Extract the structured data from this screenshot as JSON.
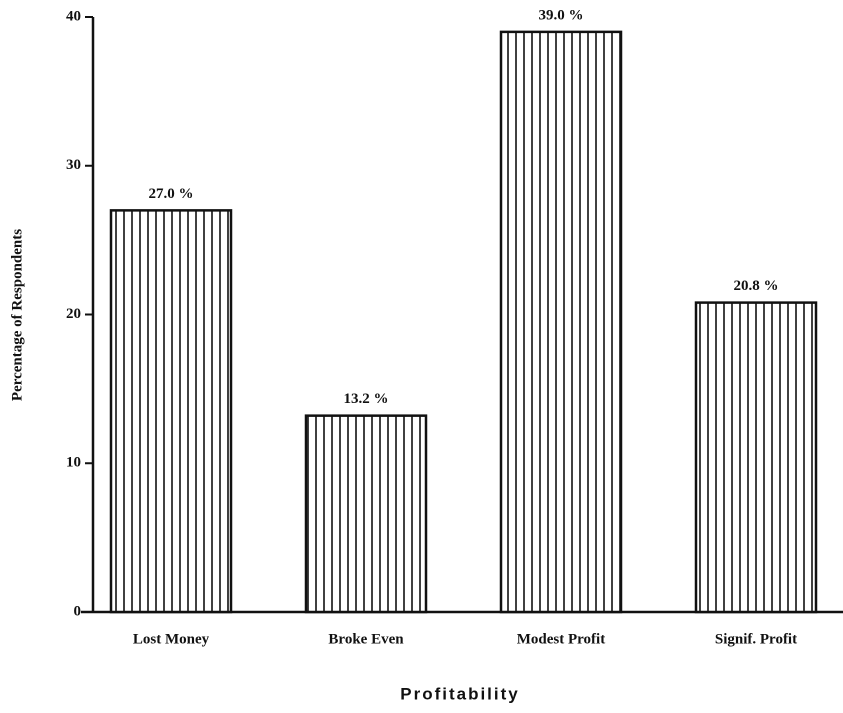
{
  "chart_data": {
    "type": "bar",
    "categories": [
      "Lost Money",
      "Broke Even",
      "Modest Profit",
      "Signif. Profit"
    ],
    "values": [
      27.0,
      13.2,
      39.0,
      20.8
    ],
    "value_labels": [
      "27.0 %",
      "13.2 %",
      "39.0 %",
      "20.8 %"
    ],
    "x_label": "Profitability",
    "y_label": "Percentage of Respondents",
    "ylim": [
      0,
      40
    ],
    "yticks": [
      0,
      10,
      20,
      30,
      40
    ],
    "color": "#111111",
    "hatch": "vertical"
  }
}
